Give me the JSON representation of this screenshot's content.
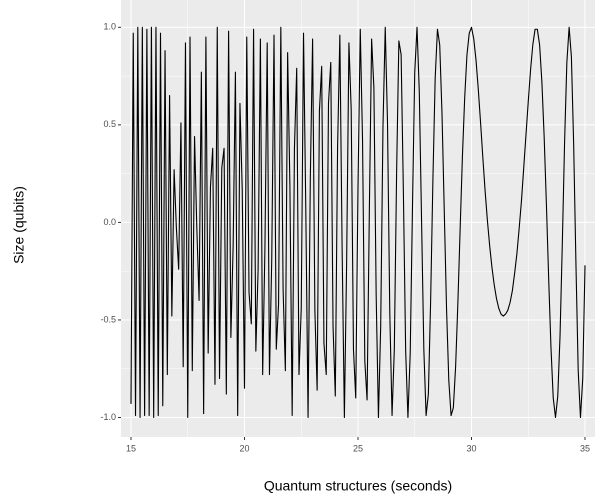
{
  "chart_data": {
    "type": "line",
    "x_label": "Quantum structures (seconds)",
    "y_label": "Size (qubits)",
    "color": "#000000",
    "background": "#EBEBEB",
    "grid": true,
    "xlim": [
      14.56,
      35.44
    ],
    "ylim": [
      -1.1,
      1.14
    ],
    "xticks": [
      15,
      20,
      25,
      30,
      35
    ],
    "xminor_ticks": [
      17.5,
      22.5,
      27.5,
      32.5
    ],
    "yticks": [
      {
        "value": -1,
        "label": "-1.0"
      },
      {
        "value": -0.5,
        "label": "-0.5"
      },
      {
        "value": 0,
        "label": "0.0"
      },
      {
        "value": 0.5,
        "label": "0.5"
      },
      {
        "value": 1,
        "label": "1.0"
      }
    ],
    "yminor_ticks": [
      -0.75,
      -0.25,
      0.25,
      0.75
    ],
    "x": [
      15,
      15.1,
      15.2,
      15.3,
      15.4,
      15.5,
      15.6,
      15.7,
      15.8,
      15.9,
      16,
      16.1,
      16.2,
      16.3,
      16.4,
      16.5,
      16.6,
      16.7,
      16.8,
      16.9,
      17,
      17.1,
      17.2,
      17.3,
      17.4,
      17.5,
      17.6,
      17.7,
      17.8,
      17.9,
      18,
      18.1,
      18.2,
      18.3,
      18.4,
      18.5,
      18.6,
      18.7,
      18.8,
      18.9,
      19,
      19.1,
      19.2,
      19.3,
      19.4,
      19.5,
      19.6,
      19.7,
      19.8,
      19.9,
      20,
      20.1,
      20.2,
      20.3,
      20.4,
      20.5,
      20.6,
      20.7,
      20.8,
      20.9,
      21,
      21.1,
      21.2,
      21.3,
      21.4,
      21.5,
      21.6,
      21.7,
      21.8,
      21.9,
      22,
      22.1,
      22.2,
      22.3,
      22.4,
      22.5,
      22.6,
      22.7,
      22.8,
      22.9,
      23,
      23.1,
      23.2,
      23.3,
      23.4,
      23.5,
      23.6,
      23.7,
      23.8,
      23.9,
      24,
      24.1,
      24.2,
      24.3,
      24.4,
      24.5,
      24.6,
      24.7,
      24.8,
      24.9,
      25,
      25.1,
      25.2,
      25.3,
      25.4,
      25.5,
      25.6,
      25.7,
      25.8,
      25.9,
      26,
      26.1,
      26.2,
      26.3,
      26.4,
      26.5,
      26.6,
      26.7,
      26.8,
      26.9,
      27,
      27.1,
      27.2,
      27.3,
      27.4,
      27.5,
      27.6,
      27.7,
      27.8,
      27.9,
      28,
      28.1,
      28.2,
      28.3,
      28.4,
      28.5,
      28.6,
      28.7,
      28.8,
      28.9,
      29,
      29.1,
      29.2,
      29.3,
      29.4,
      29.5,
      29.6,
      29.7,
      29.8,
      29.9,
      30,
      30.1,
      30.2,
      30.3,
      30.4,
      30.5,
      30.6,
      30.7,
      30.8,
      30.9,
      31,
      31.1,
      31.2,
      31.3,
      31.4,
      31.5,
      31.6,
      31.7,
      31.8,
      31.9,
      32,
      32.1,
      32.2,
      32.3,
      32.4,
      32.5,
      32.6,
      32.7,
      32.8,
      32.9,
      33,
      33.1,
      33.2,
      33.3,
      33.4,
      33.5,
      33.6,
      33.7,
      33.8,
      33.9,
      34,
      34.1,
      34.2,
      34.3,
      34.4,
      34.5,
      34.6,
      34.7,
      34.8,
      34.9,
      35
    ],
    "values": [
      -0.93,
      0.97,
      -0.99,
      1.0,
      -1.0,
      1.0,
      -0.99,
      0.99,
      -0.99,
      1.0,
      -1.0,
      1.0,
      -0.99,
      0.97,
      -0.94,
      0.88,
      -0.78,
      0.65,
      -0.48,
      0.27,
      -0.03,
      -0.24,
      0.51,
      -0.74,
      0.92,
      -1.0,
      0.95,
      -0.76,
      0.44,
      -0.03,
      -0.4,
      0.77,
      -0.98,
      0.95,
      -0.67,
      0.18,
      0.38,
      -0.83,
      1.0,
      -0.8,
      0.28,
      0.38,
      -0.88,
      0.98,
      -0.59,
      -0.12,
      0.77,
      -0.99,
      0.61,
      0.17,
      -0.85,
      0.95,
      -0.36,
      -0.52,
      0.99,
      -0.66,
      -0.24,
      0.94,
      -0.78,
      -0.13,
      0.92,
      -0.78,
      -0.19,
      0.96,
      -0.65,
      -0.42,
      1.0,
      -0.34,
      -0.76,
      0.87,
      0.19,
      -0.99,
      0.38,
      0.79,
      -0.78,
      -0.44,
      0.97,
      0.07,
      -1.0,
      0.23,
      0.94,
      -0.45,
      -0.86,
      0.57,
      0.8,
      -0.62,
      -0.78,
      0.61,
      0.82,
      -0.53,
      -0.89,
      0.38,
      0.96,
      -0.13,
      -1.0,
      -0.2,
      0.92,
      0.58,
      -0.65,
      -0.9,
      0.18,
      0.99,
      0.42,
      -0.71,
      -0.91,
      0.06,
      0.94,
      0.69,
      -0.37,
      -1.0,
      -0.53,
      0.49,
      1.0,
      0.51,
      -0.46,
      -0.99,
      -0.65,
      0.25,
      0.93,
      0.86,
      0.15,
      -0.66,
      -1.0,
      -0.67,
      0.08,
      0.77,
      1.0,
      0.67,
      0.01,
      -0.65,
      -0.99,
      -0.88,
      -0.4,
      0.22,
      0.74,
      0.99,
      0.91,
      0.56,
      0.06,
      -0.44,
      -0.81,
      -0.99,
      -0.95,
      -0.74,
      -0.41,
      -0.03,
      0.34,
      0.64,
      0.86,
      0.97,
      1.0,
      0.94,
      0.83,
      0.68,
      0.51,
      0.33,
      0.16,
      0.01,
      -0.12,
      -0.23,
      -0.32,
      -0.39,
      -0.44,
      -0.47,
      -0.48,
      -0.47,
      -0.45,
      -0.41,
      -0.35,
      -0.26,
      -0.16,
      -0.03,
      0.11,
      0.28,
      0.45,
      0.62,
      0.78,
      0.91,
      0.99,
      0.99,
      0.91,
      0.72,
      0.44,
      0.09,
      -0.29,
      -0.64,
      -0.9,
      -1.0,
      -0.89,
      -0.58,
      -0.11,
      0.41,
      0.82,
      1.0,
      0.85,
      0.4,
      -0.21,
      -0.76,
      -1.0,
      -0.8,
      -0.22
    ]
  }
}
